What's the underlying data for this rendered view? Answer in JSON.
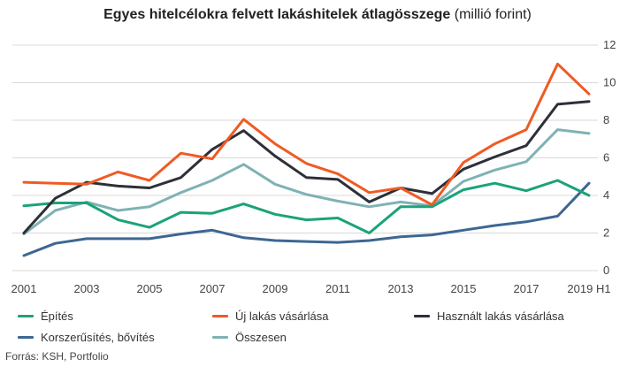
{
  "title": {
    "main": "Egyes hitelcélokra felvett lakáshitelek átlagösszege",
    "unit": "(millió forint)"
  },
  "source": "Forrás: KSH, Portfolio",
  "chart_data": {
    "type": "line",
    "x": [
      "2001",
      "2002",
      "2003",
      "2004",
      "2005",
      "2006",
      "2007",
      "2008",
      "2009",
      "2010",
      "2011",
      "2012",
      "2013",
      "2014",
      "2015",
      "2016",
      "2017",
      "2018",
      "2019 H1"
    ],
    "xtick_labels": [
      "2001",
      "2003",
      "2005",
      "2007",
      "2009",
      "2011",
      "2013",
      "2015",
      "2017",
      "2019 H1"
    ],
    "ylim": [
      0,
      12
    ],
    "yticks": [
      0,
      2,
      4,
      6,
      8,
      10,
      12
    ],
    "y_axis_position": "right",
    "grid": true,
    "legend_position": "bottom",
    "series": [
      {
        "name": "Építés",
        "color": "#1aa37a",
        "values": [
          3.45,
          3.6,
          3.6,
          2.7,
          2.3,
          3.1,
          3.05,
          3.55,
          3.0,
          2.7,
          2.8,
          2.0,
          3.4,
          3.4,
          4.3,
          4.65,
          4.25,
          4.8,
          4.0
        ]
      },
      {
        "name": "Új lakás vásárlása",
        "color": "#ef5b24",
        "values": [
          4.7,
          4.65,
          4.6,
          5.25,
          4.8,
          6.25,
          5.95,
          8.05,
          6.75,
          5.7,
          5.15,
          4.15,
          4.4,
          3.5,
          5.75,
          6.75,
          7.5,
          11.0,
          9.4
        ]
      },
      {
        "name": "Használt lakás vásárlása",
        "color": "#2d3038",
        "values": [
          2.0,
          3.85,
          4.7,
          4.5,
          4.4,
          4.95,
          6.45,
          7.45,
          6.1,
          4.95,
          4.85,
          3.65,
          4.4,
          4.1,
          5.4,
          6.05,
          6.65,
          8.85,
          9.0
        ]
      },
      {
        "name": "Korszerűsítés, bővítés",
        "color": "#3d6792",
        "values": [
          0.8,
          1.45,
          1.7,
          1.7,
          1.7,
          1.95,
          2.15,
          1.75,
          1.6,
          1.55,
          1.5,
          1.6,
          1.8,
          1.9,
          2.15,
          2.4,
          2.6,
          2.9,
          4.65
        ]
      },
      {
        "name": "Összesen",
        "color": "#7fb2b4",
        "values": [
          1.95,
          3.2,
          3.65,
          3.2,
          3.4,
          4.15,
          4.8,
          5.65,
          4.6,
          4.05,
          3.7,
          3.4,
          3.65,
          3.45,
          4.75,
          5.35,
          5.8,
          7.5,
          7.3
        ]
      }
    ]
  }
}
